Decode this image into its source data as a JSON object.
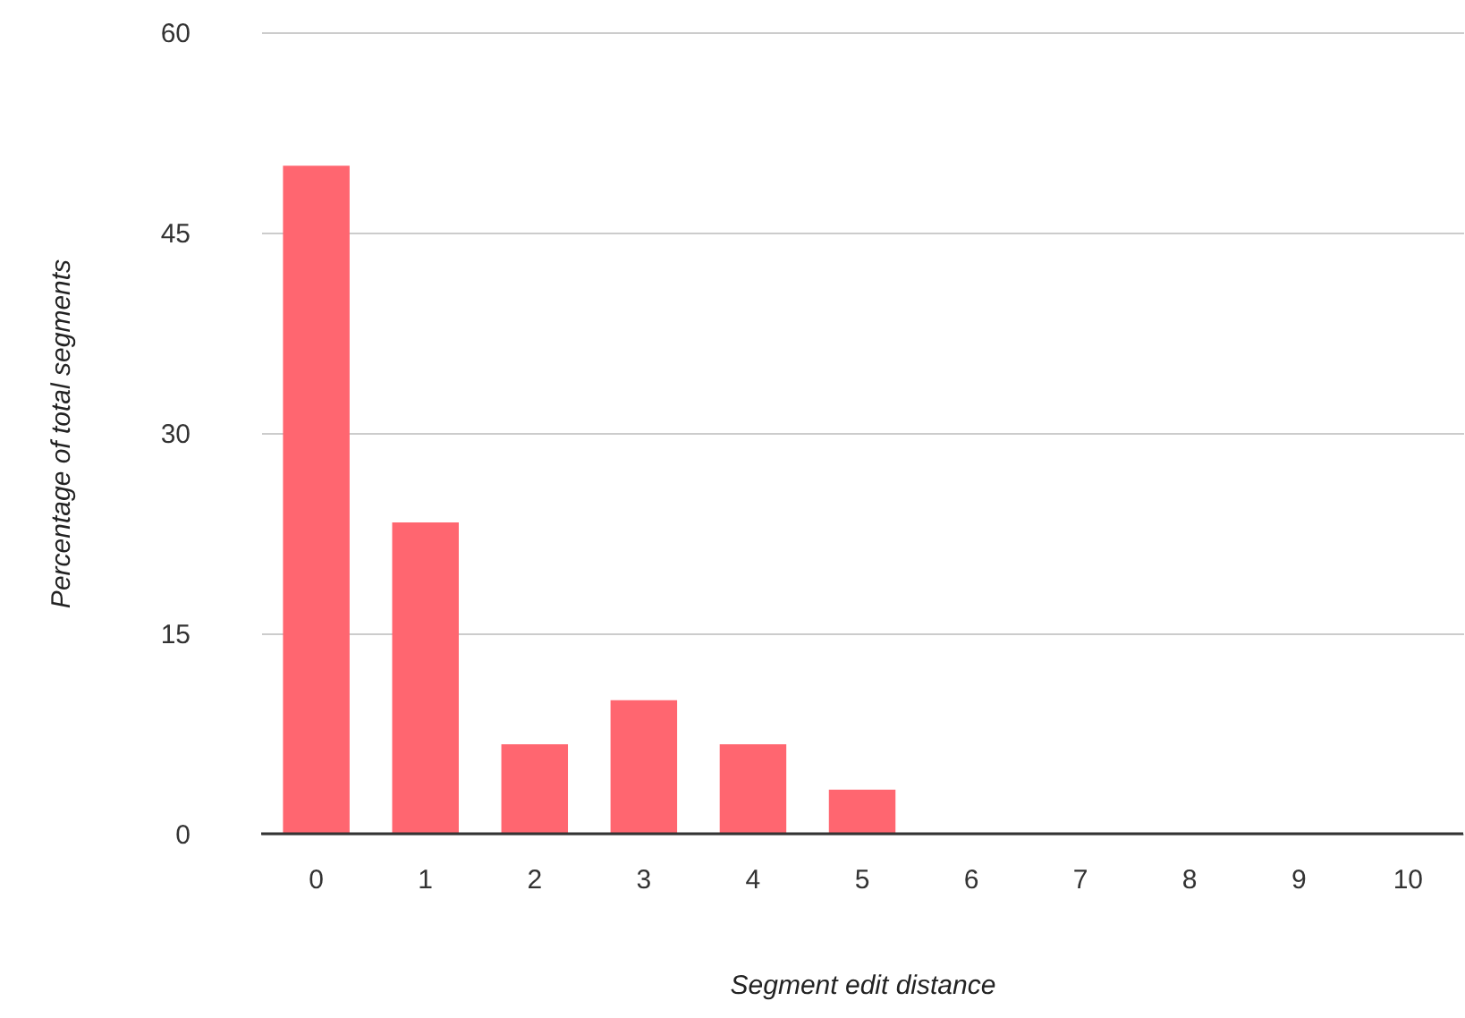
{
  "chart_data": {
    "type": "bar",
    "xlabel": "Segment edit distance",
    "ylabel": "Percentage of total segments",
    "categories": [
      "0",
      "1",
      "2",
      "3",
      "4",
      "5",
      "6",
      "7",
      "8",
      "9",
      "10"
    ],
    "values": [
      50,
      23.3,
      6.7,
      10,
      6.7,
      3.3,
      0,
      0,
      0,
      0,
      0
    ],
    "color": "#ff6670",
    "ylim": [
      0,
      60
    ],
    "yticks": [
      0,
      15,
      30,
      45,
      60
    ],
    "grid": "y"
  }
}
